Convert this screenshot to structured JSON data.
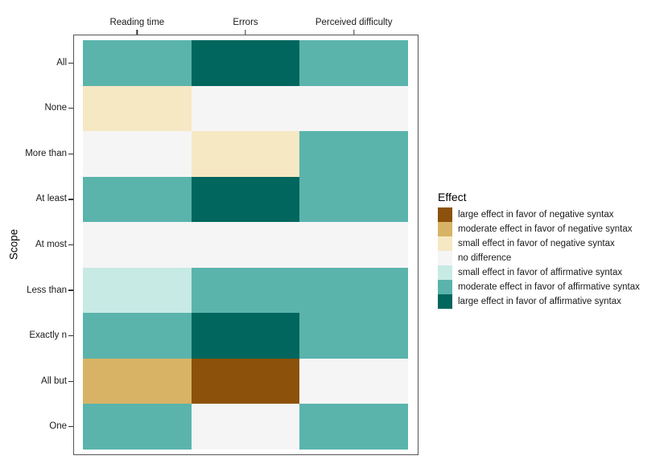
{
  "chart_data": {
    "type": "heatmap",
    "title": "",
    "xlabel": "",
    "ylabel": "Scope",
    "x_axis_position": "top",
    "grid": false,
    "columns": [
      "Reading time",
      "Errors",
      "Perceived difficulty"
    ],
    "rows": [
      "All",
      "None",
      "More than",
      "At least",
      "At most",
      "Less than",
      "Exactly n",
      "All but",
      "One"
    ],
    "values": [
      [
        "moderate_affirmative",
        "large_affirmative",
        "moderate_affirmative"
      ],
      [
        "small_negative",
        "no_difference",
        "no_difference"
      ],
      [
        "no_difference",
        "small_negative",
        "moderate_affirmative"
      ],
      [
        "moderate_affirmative",
        "large_affirmative",
        "moderate_affirmative"
      ],
      [
        "no_difference",
        "no_difference",
        "no_difference"
      ],
      [
        "small_affirmative",
        "moderate_affirmative",
        "moderate_affirmative"
      ],
      [
        "moderate_affirmative",
        "large_affirmative",
        "moderate_affirmative"
      ],
      [
        "moderate_negative",
        "large_negative",
        "no_difference"
      ],
      [
        "moderate_affirmative",
        "no_difference",
        "moderate_affirmative"
      ]
    ],
    "legend": {
      "title": "Effect",
      "position": "right",
      "items": [
        {
          "key": "large_negative",
          "label": "large effect in favor of negative syntax",
          "color": "#8c510a"
        },
        {
          "key": "moderate_negative",
          "label": "moderate effect in favor of negative syntax",
          "color": "#d8b365"
        },
        {
          "key": "small_negative",
          "label": "small effect in favor of negative syntax",
          "color": "#f6e8c3"
        },
        {
          "key": "no_difference",
          "label": "no difference",
          "color": "#f5f5f5"
        },
        {
          "key": "small_affirmative",
          "label": "small effect in favor of affirmative syntax",
          "color": "#c7eae5"
        },
        {
          "key": "moderate_affirmative",
          "label": "moderate effect in favor of affirmative syntax",
          "color": "#5ab4ac"
        },
        {
          "key": "large_affirmative",
          "label": "large effect in favor of affirmative syntax",
          "color": "#01665e"
        }
      ]
    },
    "colors": {
      "panel_border": "#555555",
      "tick": "#333333",
      "background": "#ffffff"
    }
  }
}
